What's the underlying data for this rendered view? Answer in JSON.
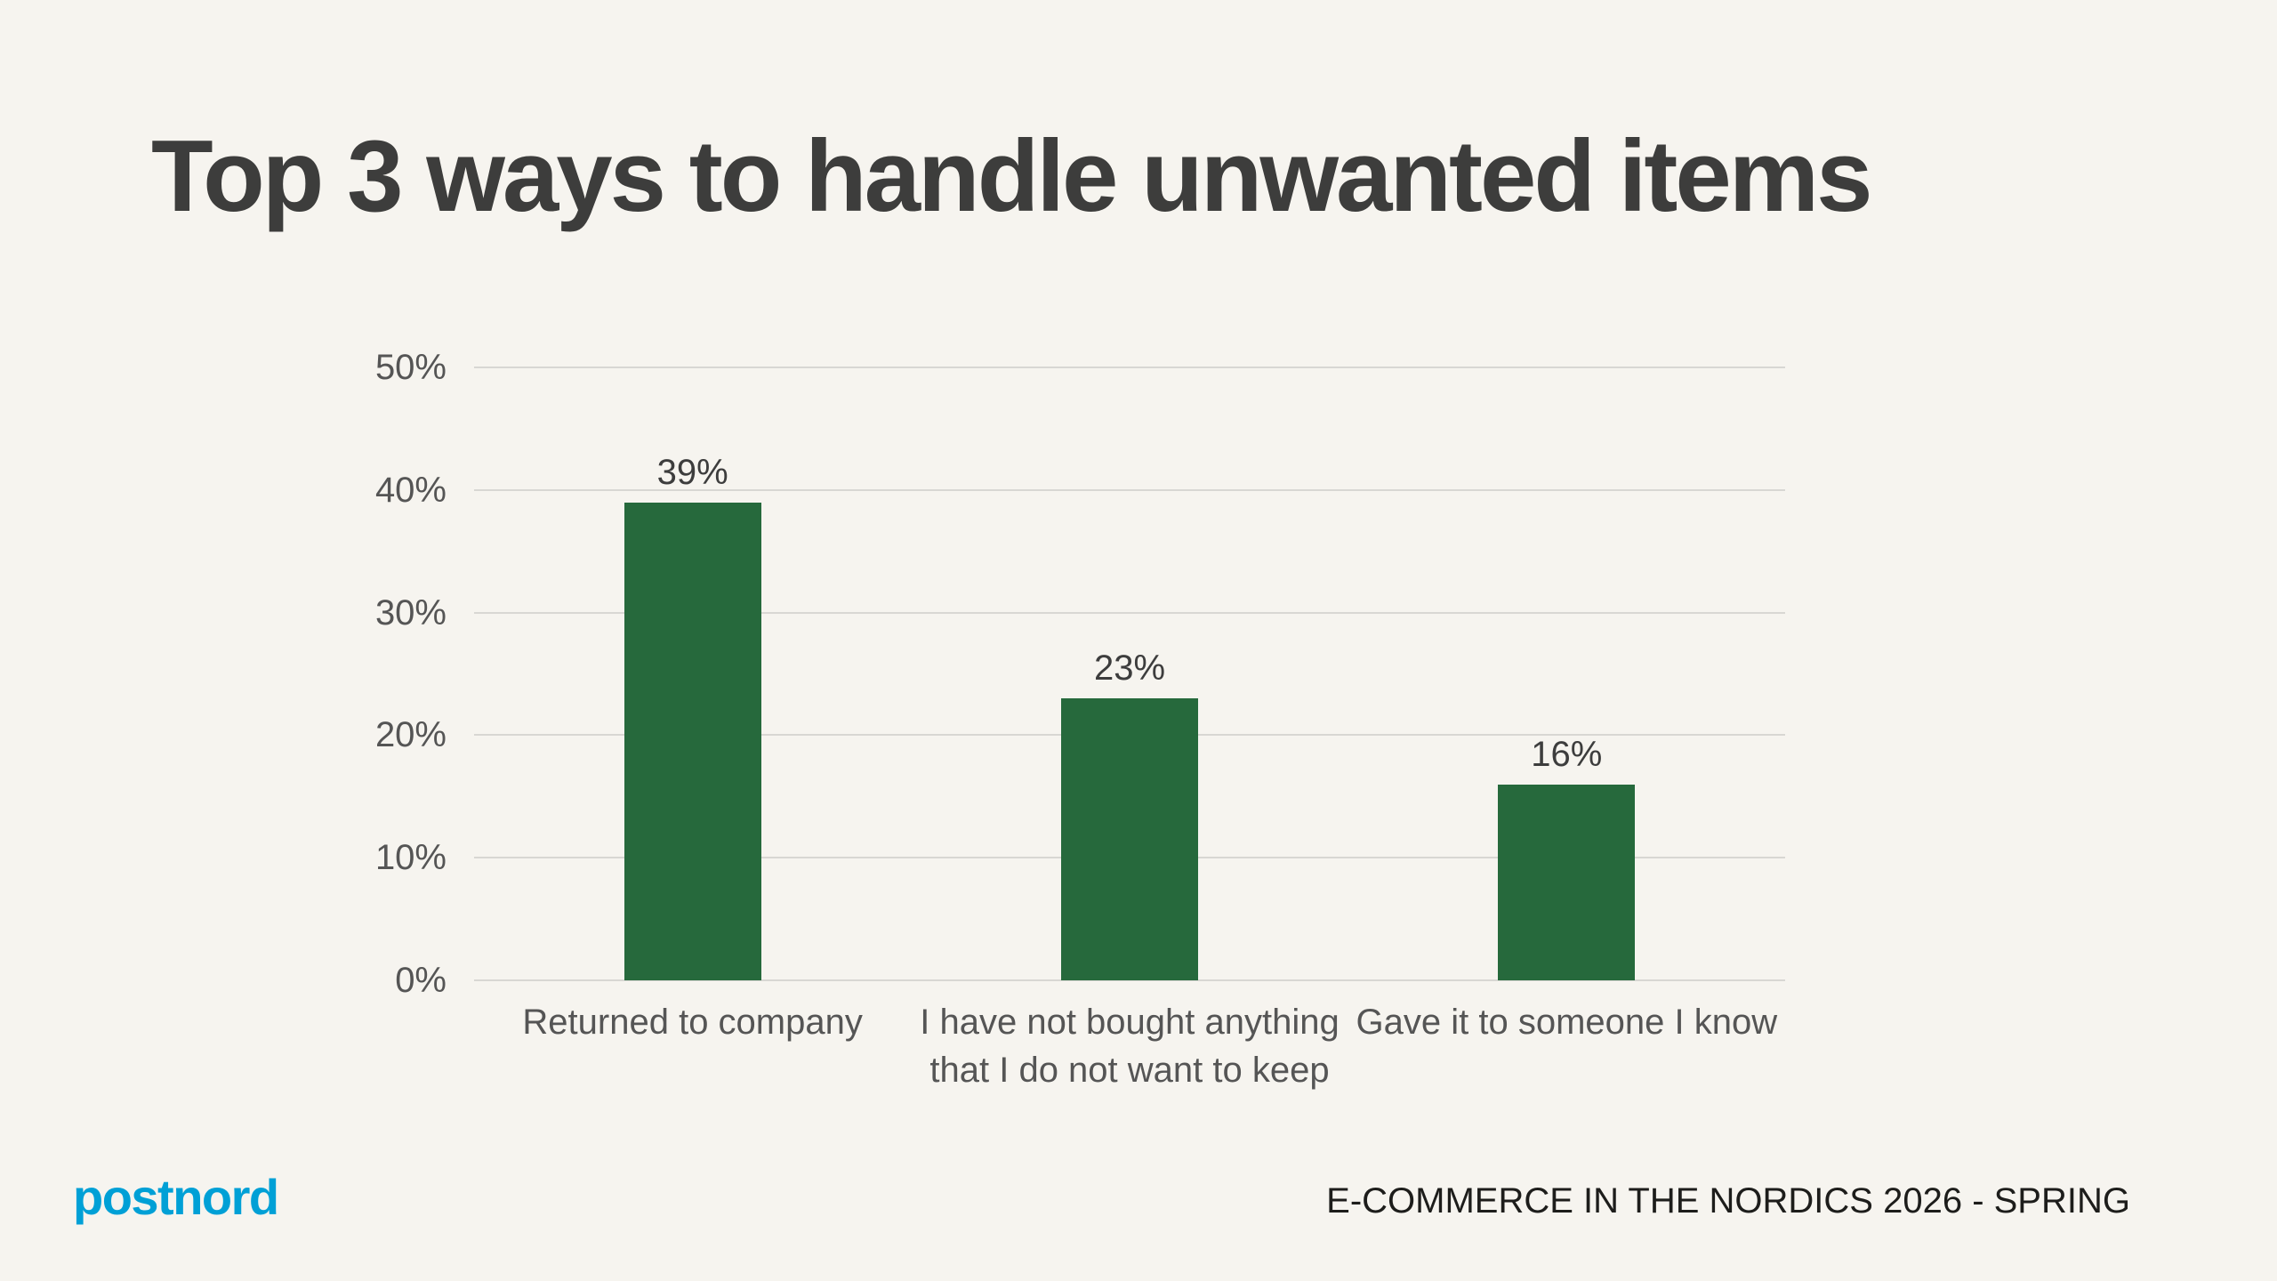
{
  "slide": {
    "title": "Top 3 ways to handle unwanted items",
    "footer": {
      "logo_text": "postnord",
      "source_text": "E-COMMERCE IN THE NORDICS 2026 - SPRING"
    }
  },
  "colors": {
    "background": "#f6f4ef",
    "bar": "#26693c",
    "title_text": "#3d3d3c",
    "axis_text": "#555555",
    "value_text": "#3d3d3d",
    "gridline": "#d8d7d3",
    "logo_blue": "#00a0d6",
    "footer_text": "#1d1d1b"
  },
  "chart_data": {
    "type": "bar",
    "title": "",
    "xlabel": "",
    "ylabel": "",
    "categories": [
      "Returned to company",
      "I have not bought anything that I do not want to keep",
      "Gave it to someone I know"
    ],
    "values": [
      39,
      23,
      16
    ],
    "value_labels": [
      "39%",
      "23%",
      "16%"
    ],
    "ylim": [
      0,
      50
    ],
    "ytick_step": 10,
    "ytick_labels": [
      "0%",
      "10%",
      "20%",
      "30%",
      "40%",
      "50%"
    ],
    "grid": true,
    "legend": false
  }
}
